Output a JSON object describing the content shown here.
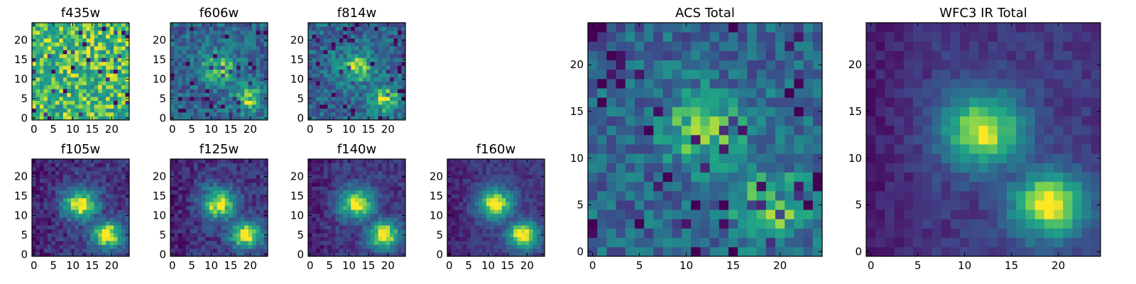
{
  "colors": {
    "colormap": "viridis",
    "frame": "#000000",
    "background": "#ffffff"
  },
  "chart_data": [
    {
      "type": "heatmap",
      "title": "f435w",
      "xlim": [
        0,
        25
      ],
      "ylim": [
        0,
        25
      ],
      "x_ticks": [
        0,
        5,
        10,
        15,
        20
      ],
      "y_ticks": [
        0,
        5,
        10,
        15,
        20
      ],
      "grid": false,
      "colormap": "viridis",
      "pattern": "noise-high",
      "description_values": {
        "mean_level": 0.75,
        "noise": 0.35
      }
    },
    {
      "type": "heatmap",
      "title": "f606w",
      "xlim": [
        0,
        25
      ],
      "ylim": [
        0,
        25
      ],
      "x_ticks": [
        0,
        5,
        10,
        15,
        20
      ],
      "y_ticks": [
        0,
        5,
        10,
        15,
        20
      ],
      "grid": false,
      "colormap": "viridis",
      "pattern": "noise-with-source",
      "description_values": {
        "mean_level": 0.55,
        "noise": 0.4
      }
    },
    {
      "type": "heatmap",
      "title": "f814w",
      "xlim": [
        0,
        25
      ],
      "ylim": [
        0,
        25
      ],
      "x_ticks": [
        0,
        5,
        10,
        15,
        20
      ],
      "y_ticks": [
        0,
        5,
        10,
        15,
        20
      ],
      "grid": false,
      "colormap": "viridis",
      "pattern": "noise-with-source",
      "description_values": {
        "mean_level": 0.55,
        "noise": 0.4
      }
    },
    {
      "type": "heatmap",
      "title": "f105w",
      "xlim": [
        0,
        25
      ],
      "ylim": [
        0,
        25
      ],
      "x_ticks": [
        0,
        5,
        10,
        15,
        20
      ],
      "y_ticks": [
        0,
        5,
        10,
        15,
        20
      ],
      "grid": false,
      "colormap": "viridis",
      "pattern": "smooth-source",
      "description_values": {
        "mean_level": 0.45,
        "noise": 0.15
      }
    },
    {
      "type": "heatmap",
      "title": "f125w",
      "xlim": [
        0,
        25
      ],
      "ylim": [
        0,
        25
      ],
      "x_ticks": [
        0,
        5,
        10,
        15,
        20
      ],
      "y_ticks": [
        0,
        5,
        10,
        15,
        20
      ],
      "grid": false,
      "colormap": "viridis",
      "pattern": "smooth-source",
      "description_values": {
        "mean_level": 0.45,
        "noise": 0.15
      }
    },
    {
      "type": "heatmap",
      "title": "f140w",
      "xlim": [
        0,
        25
      ],
      "ylim": [
        0,
        25
      ],
      "x_ticks": [
        0,
        5,
        10,
        15,
        20
      ],
      "y_ticks": [
        0,
        5,
        10,
        15,
        20
      ],
      "grid": false,
      "colormap": "viridis",
      "pattern": "smooth-source",
      "description_values": {
        "mean_level": 0.4,
        "noise": 0.12
      }
    },
    {
      "type": "heatmap",
      "title": "f160w",
      "xlim": [
        0,
        25
      ],
      "ylim": [
        0,
        25
      ],
      "x_ticks": [
        0,
        5,
        10,
        15,
        20
      ],
      "y_ticks": [
        0,
        5,
        10,
        15,
        20
      ],
      "grid": false,
      "colormap": "viridis",
      "pattern": "smooth-source",
      "description_values": {
        "mean_level": 0.4,
        "noise": 0.1
      }
    },
    {
      "type": "heatmap",
      "title": "ACS Total",
      "xlim": [
        0,
        25
      ],
      "ylim": [
        0,
        25
      ],
      "x_ticks": [
        0,
        5,
        10,
        15,
        20
      ],
      "y_ticks": [
        0,
        5,
        10,
        15,
        20
      ],
      "grid": false,
      "colormap": "viridis",
      "pattern": "noise-with-source",
      "description_values": {
        "mean_level": 0.55,
        "noise": 0.3
      }
    },
    {
      "type": "heatmap",
      "title": "WFC3 IR Total",
      "xlim": [
        0,
        25
      ],
      "ylim": [
        0,
        25
      ],
      "x_ticks": [
        0,
        5,
        10,
        15,
        20
      ],
      "y_ticks": [
        0,
        5,
        10,
        15,
        20
      ],
      "grid": false,
      "colormap": "viridis",
      "pattern": "smooth-source",
      "description_values": {
        "mean_level": 0.4,
        "noise": 0.08
      }
    }
  ]
}
